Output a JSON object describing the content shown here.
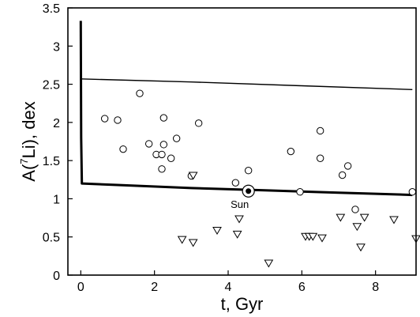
{
  "chart_data": {
    "type": "scatter",
    "title": "",
    "xlabel": "t, Gyr",
    "ylabel_parts": [
      "A(",
      "7",
      "Li), dex"
    ],
    "xlim": [
      -0.35,
      9.1
    ],
    "ylim": [
      0,
      3.5
    ],
    "x_ticks": [
      0,
      2,
      4,
      6,
      8
    ],
    "y_ticks": [
      0,
      0.5,
      1,
      1.5,
      2,
      2.5,
      3,
      3.5
    ],
    "grid": false,
    "legend": "none",
    "series": [
      {
        "marker": "circle",
        "points": [
          [
            0.65,
            2.05
          ],
          [
            1.0,
            2.03
          ],
          [
            1.15,
            1.65
          ],
          [
            1.6,
            2.38
          ],
          [
            1.85,
            1.72
          ],
          [
            2.05,
            1.58
          ],
          [
            2.2,
            1.39
          ],
          [
            2.2,
            1.58
          ],
          [
            2.25,
            1.71
          ],
          [
            2.25,
            2.06
          ],
          [
            2.45,
            1.53
          ],
          [
            2.6,
            1.79
          ],
          [
            3.0,
            1.3
          ],
          [
            3.2,
            1.99
          ],
          [
            4.2,
            1.21
          ],
          [
            4.55,
            1.37
          ],
          [
            5.7,
            1.62
          ],
          [
            5.95,
            1.09
          ],
          [
            6.5,
            1.89
          ],
          [
            6.5,
            1.53
          ],
          [
            7.1,
            1.31
          ],
          [
            7.25,
            1.43
          ],
          [
            7.45,
            0.86
          ],
          [
            9.0,
            1.09
          ]
        ]
      },
      {
        "marker": "triangle-down",
        "points": [
          [
            2.75,
            0.47
          ],
          [
            3.05,
            1.31
          ],
          [
            3.05,
            0.43
          ],
          [
            3.7,
            0.59
          ],
          [
            4.25,
            0.54
          ],
          [
            4.3,
            0.74
          ],
          [
            5.1,
            0.16
          ],
          [
            6.1,
            0.51
          ],
          [
            6.2,
            0.51
          ],
          [
            6.3,
            0.51
          ],
          [
            6.55,
            0.49
          ],
          [
            7.05,
            0.76
          ],
          [
            7.5,
            0.64
          ],
          [
            7.6,
            0.37
          ],
          [
            7.7,
            0.76
          ],
          [
            8.5,
            0.73
          ],
          [
            9.1,
            0.48
          ]
        ]
      }
    ],
    "curves": [
      {
        "style": "thick",
        "points": [
          [
            0,
            3.33
          ],
          [
            0.01,
            1.8
          ],
          [
            0.03,
            1.2
          ],
          [
            1,
            1.18
          ],
          [
            3,
            1.14
          ],
          [
            5,
            1.11
          ],
          [
            7,
            1.08
          ],
          [
            9,
            1.05
          ]
        ]
      },
      {
        "style": "thin",
        "points": [
          [
            0,
            2.57
          ],
          [
            3,
            2.53
          ],
          [
            6,
            2.48
          ],
          [
            9,
            2.43
          ]
        ]
      }
    ],
    "sun": {
      "label": "Sun",
      "x": 4.55,
      "y": 1.1
    }
  }
}
